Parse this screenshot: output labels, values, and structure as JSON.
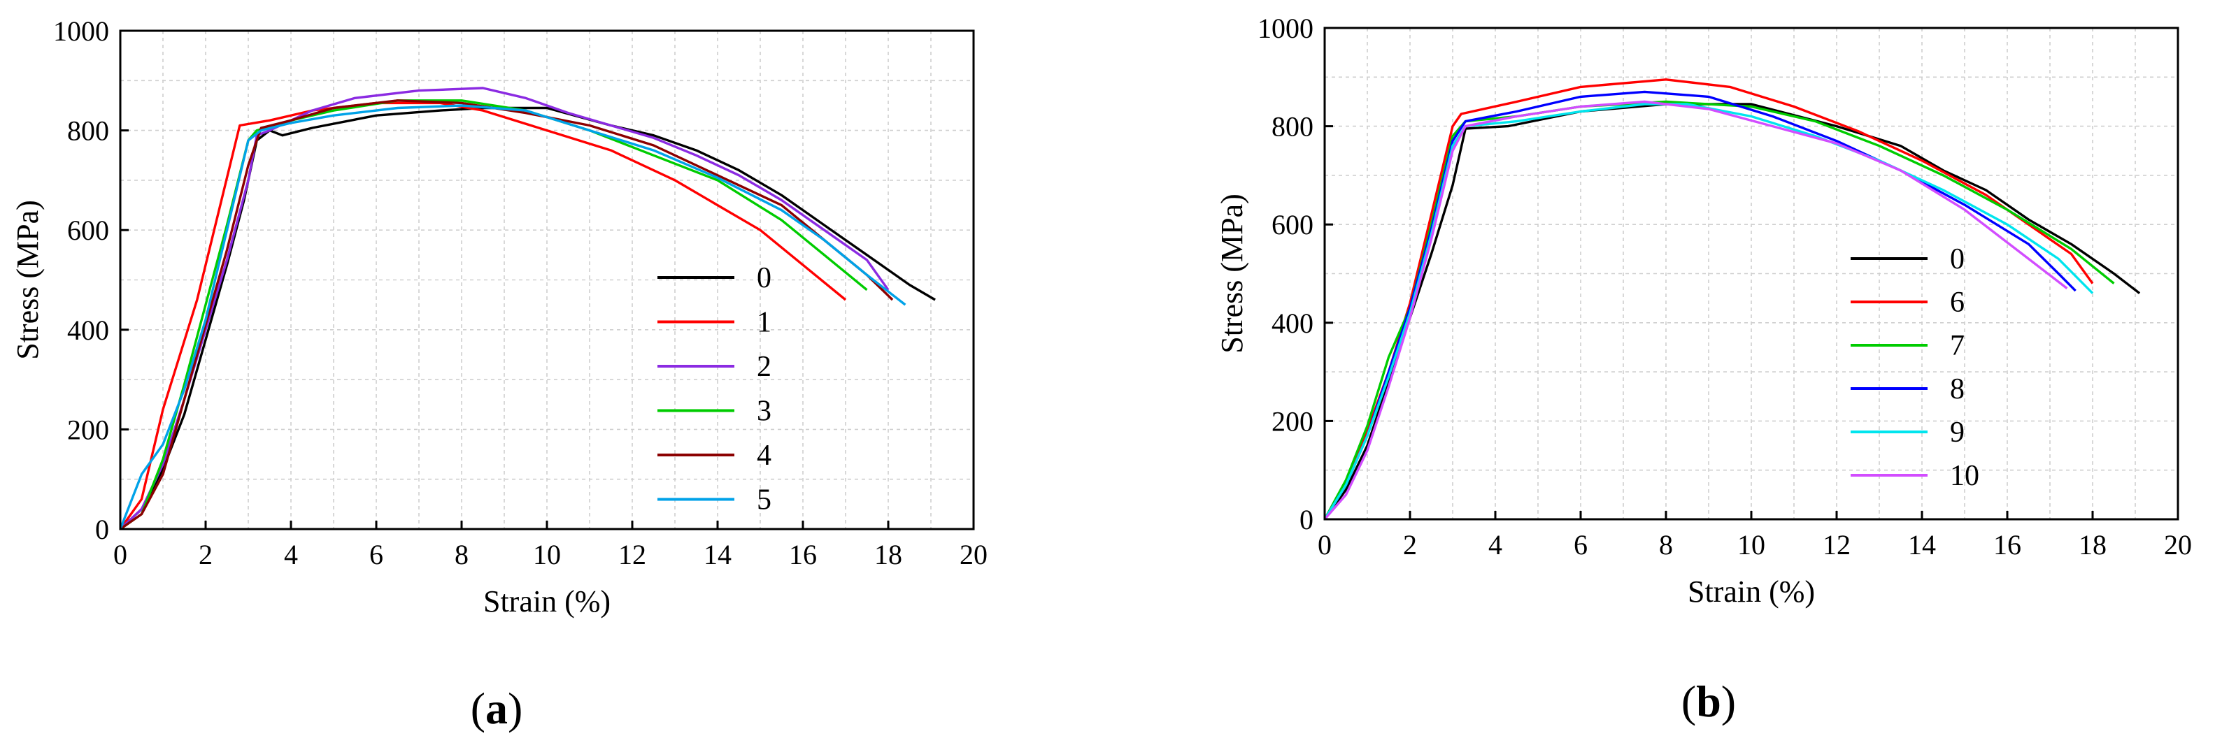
{
  "chart_data": [
    {
      "type": "line",
      "panel": "(a)",
      "caption": {
        "open": "(",
        "letter": "a",
        "close": ")"
      },
      "xlabel": "Strain (%)",
      "ylabel": "Stress (MPa)",
      "xlim": [
        0,
        20
      ],
      "ylim": [
        0,
        1000
      ],
      "xticks": [
        0,
        2,
        4,
        6,
        8,
        10,
        12,
        14,
        16,
        18,
        20
      ],
      "yticks": [
        0,
        200,
        400,
        600,
        800,
        1000
      ],
      "grid": true,
      "legend_position": "right-center",
      "series": [
        {
          "name": "0",
          "color": "#000000",
          "x": [
            0,
            0.5,
            1.0,
            1.5,
            2.0,
            2.5,
            2.9,
            3.2,
            3.5,
            3.8,
            4.5,
            6,
            7.5,
            8.5,
            10,
            11.5,
            12.5,
            13.5,
            14.5,
            15.5,
            16.5,
            17.5,
            18.5,
            19.1
          ],
          "y": [
            0,
            40,
            120,
            230,
            380,
            530,
            660,
            780,
            800,
            790,
            805,
            830,
            840,
            845,
            845,
            810,
            790,
            760,
            720,
            670,
            610,
            550,
            490,
            460
          ]
        },
        {
          "name": "1",
          "color": "#ff0000",
          "x": [
            0,
            0.5,
            1.0,
            1.4,
            1.8,
            2.2,
            2.8,
            3.5,
            4.5,
            6,
            7.5,
            8.5,
            10,
            11.5,
            13,
            14,
            15,
            16,
            17
          ],
          "y": [
            0,
            60,
            240,
            350,
            460,
            600,
            810,
            820,
            840,
            855,
            855,
            840,
            800,
            760,
            700,
            650,
            600,
            530,
            460
          ]
        },
        {
          "name": "2",
          "color": "#8b2be2",
          "x": [
            0,
            0.5,
            1.0,
            1.5,
            2.0,
            2.5,
            3.0,
            3.2,
            3.5,
            4.5,
            5.5,
            7,
            8.5,
            9.5,
            10.5,
            11.5,
            12.5,
            13.5,
            14.5,
            15.5,
            16.5,
            17.5,
            18.0
          ],
          "y": [
            0,
            40,
            130,
            260,
            400,
            540,
            700,
            790,
            800,
            840,
            865,
            880,
            885,
            865,
            835,
            810,
            785,
            750,
            710,
            660,
            600,
            540,
            480
          ]
        },
        {
          "name": "3",
          "color": "#00cc00",
          "x": [
            0,
            0.5,
            1.0,
            1.5,
            2.0,
            2.5,
            3.0,
            3.2,
            4,
            5,
            6.5,
            8,
            9.5,
            11,
            12.5,
            14,
            15.5,
            16.5,
            17.5
          ],
          "y": [
            0,
            30,
            140,
            290,
            450,
            610,
            780,
            800,
            820,
            840,
            860,
            860,
            840,
            800,
            750,
            700,
            620,
            550,
            480
          ]
        },
        {
          "name": "4",
          "color": "#8b0000",
          "x": [
            0,
            0.5,
            1.0,
            1.5,
            2.0,
            2.5,
            3.0,
            3.3,
            4,
            5,
            6.5,
            8,
            9.5,
            11,
            12.5,
            14,
            15.5,
            16.5,
            17.5,
            18.1
          ],
          "y": [
            0,
            30,
            110,
            260,
            410,
            560,
            730,
            805,
            820,
            845,
            860,
            855,
            835,
            810,
            770,
            710,
            650,
            580,
            510,
            460
          ]
        },
        {
          "name": "5",
          "color": "#00a2e8",
          "x": [
            0,
            0.5,
            1.0,
            1.5,
            2.0,
            2.5,
            3.0,
            3.3,
            4,
            5,
            6.5,
            8,
            9.5,
            11,
            12.5,
            14,
            15.5,
            16.5,
            17.5,
            18.4
          ],
          "y": [
            0,
            110,
            170,
            280,
            420,
            600,
            780,
            800,
            815,
            830,
            845,
            850,
            840,
            800,
            760,
            705,
            640,
            580,
            510,
            450
          ]
        }
      ]
    },
    {
      "type": "line",
      "panel": "(b)",
      "caption": {
        "open": "(",
        "letter": "b",
        "close": ")"
      },
      "xlabel": "Strain (%)",
      "ylabel": "Stress (MPa)",
      "xlim": [
        0,
        20
      ],
      "ylim": [
        0,
        1000
      ],
      "xticks": [
        0,
        2,
        4,
        6,
        8,
        10,
        12,
        14,
        16,
        18,
        20
      ],
      "yticks": [
        0,
        200,
        400,
        600,
        800,
        1000
      ],
      "grid": true,
      "legend_position": "right-center",
      "series": [
        {
          "name": "0",
          "color": "#000000",
          "x": [
            0,
            0.5,
            1.0,
            1.5,
            2.0,
            2.5,
            3.0,
            3.3,
            4.3,
            6,
            8,
            10,
            12,
            13.5,
            14.5,
            15.5,
            16.5,
            17.5,
            18.5,
            19.1
          ],
          "y": [
            0,
            60,
            150,
            280,
            410,
            540,
            680,
            795,
            800,
            830,
            845,
            845,
            800,
            760,
            710,
            670,
            610,
            560,
            500,
            460
          ]
        },
        {
          "name": "6",
          "color": "#ff0000",
          "x": [
            0,
            0.5,
            1.0,
            1.5,
            2.0,
            2.5,
            3.0,
            3.2,
            4.5,
            6,
            8,
            9.5,
            11,
            12.5,
            14,
            15.5,
            16.5,
            17.5,
            18.0
          ],
          "y": [
            0,
            70,
            180,
            300,
            440,
            620,
            800,
            825,
            850,
            880,
            895,
            880,
            840,
            790,
            730,
            660,
            600,
            540,
            480
          ]
        },
        {
          "name": "7",
          "color": "#00cc00",
          "x": [
            0,
            0.5,
            1.0,
            1.5,
            2.0,
            2.5,
            3.0,
            3.3,
            4.5,
            6,
            8,
            10,
            11.5,
            13,
            14.5,
            16,
            17.5,
            18.5
          ],
          "y": [
            0,
            80,
            190,
            330,
            430,
            600,
            780,
            810,
            820,
            840,
            850,
            840,
            810,
            760,
            700,
            630,
            550,
            480
          ]
        },
        {
          "name": "8",
          "color": "#0000ff",
          "x": [
            0,
            0.5,
            1.0,
            1.5,
            2.0,
            2.5,
            3.0,
            3.3,
            4.5,
            6,
            7.5,
            9,
            10.5,
            12,
            13.5,
            15,
            16.5,
            17.2,
            17.6
          ],
          "y": [
            0,
            70,
            170,
            300,
            430,
            590,
            770,
            810,
            830,
            860,
            870,
            860,
            820,
            770,
            710,
            640,
            560,
            500,
            465
          ]
        },
        {
          "name": "9",
          "color": "#00e5ee",
          "x": [
            0,
            0.5,
            1.0,
            1.5,
            2.0,
            2.5,
            3.0,
            3.3,
            4.5,
            6,
            7.5,
            8.5,
            10,
            11.5,
            13,
            14.5,
            16,
            17.2,
            18.0
          ],
          "y": [
            0,
            70,
            170,
            290,
            420,
            580,
            760,
            800,
            810,
            830,
            845,
            845,
            820,
            780,
            730,
            670,
            600,
            530,
            460
          ]
        },
        {
          "name": "10",
          "color": "#d24dff",
          "x": [
            0,
            0.5,
            1.0,
            1.5,
            2.0,
            2.5,
            3.0,
            3.3,
            4.5,
            6,
            7.5,
            9,
            10.5,
            12,
            13.5,
            15,
            16.5,
            17.4
          ],
          "y": [
            0,
            50,
            140,
            270,
            410,
            570,
            750,
            800,
            820,
            840,
            850,
            835,
            800,
            765,
            710,
            630,
            530,
            470
          ]
        }
      ]
    }
  ]
}
